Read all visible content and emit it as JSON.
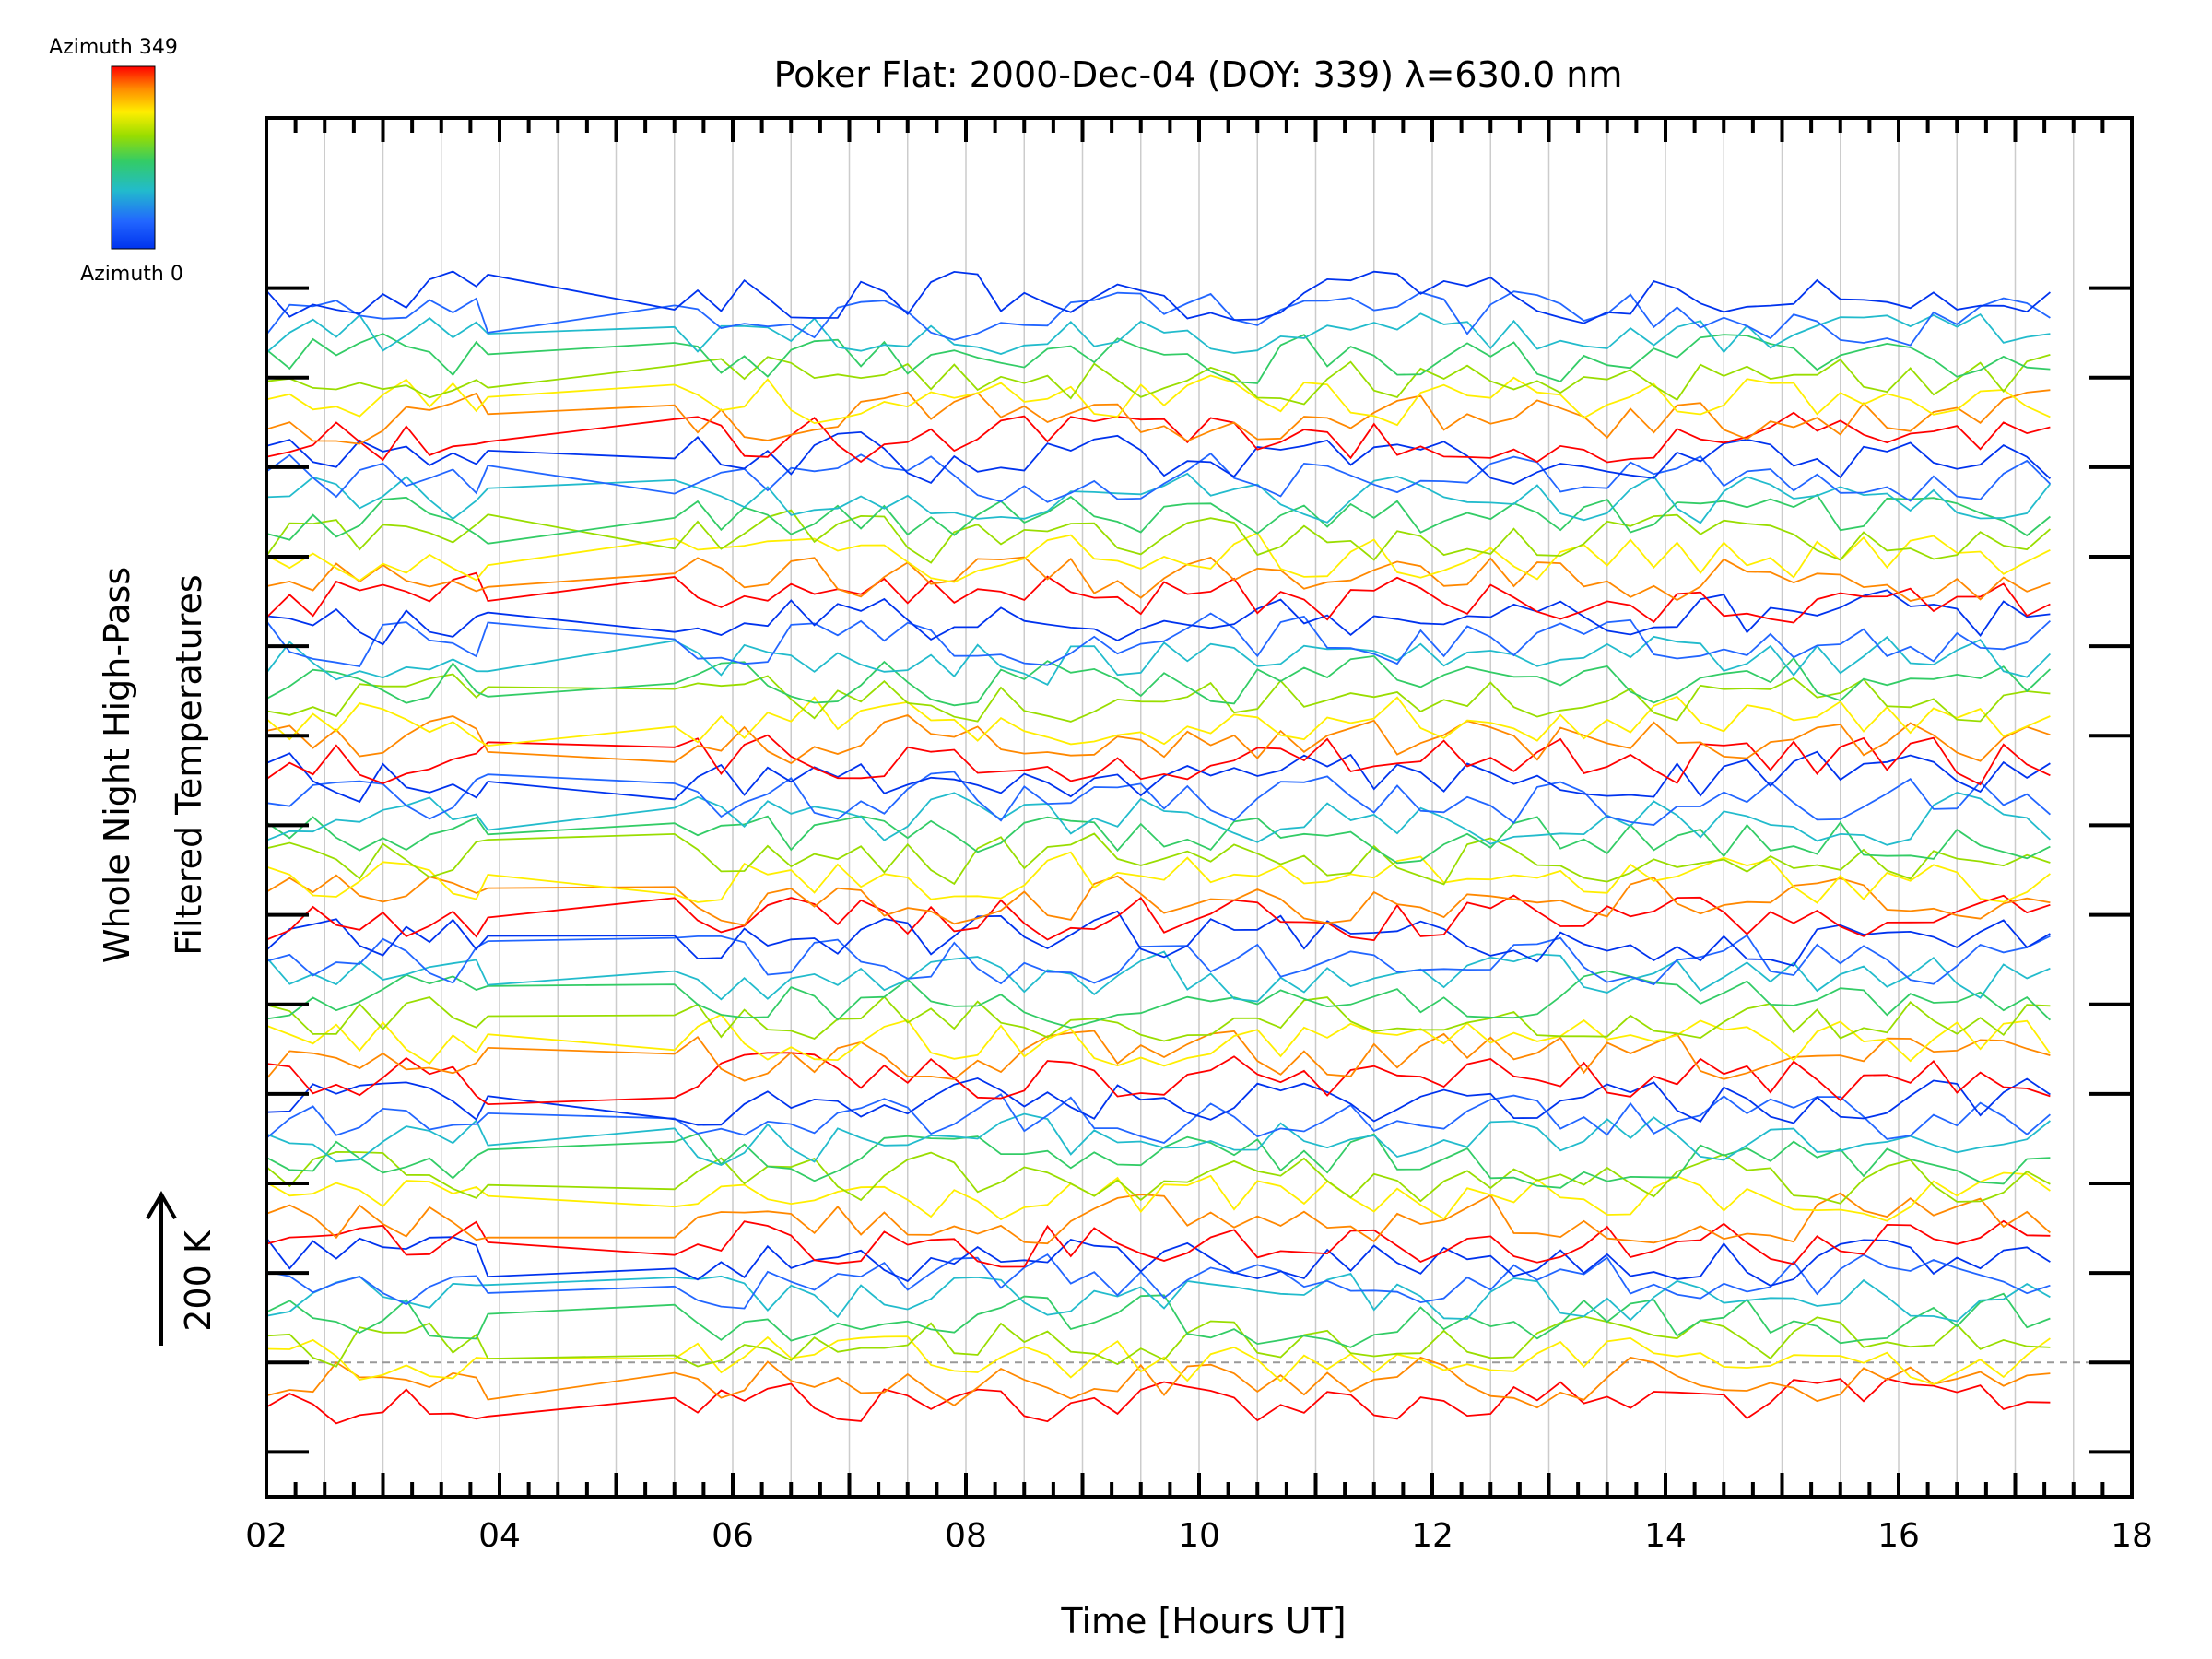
{
  "chart_data": {
    "type": "line",
    "title": "Poker Flat: 2000-Dec-04 (DOY: 339) λ=630.0 nm",
    "xlabel": "Time [Hours UT]",
    "ylabel_line1": "Whole Night High-Pass",
    "ylabel_line2": "Filtered Temperatures",
    "scale_label": "200 K",
    "xlim": [
      2,
      18
    ],
    "x_ticks": [
      "02",
      "04",
      "06",
      "08",
      "10",
      "12",
      "14",
      "16",
      "18"
    ],
    "y_ticks_major_count": 14,
    "grid": true,
    "baseline_dashed": true,
    "colorbar": {
      "top_label": "Azimuth 349",
      "bottom_label": "Azimuth 0",
      "colors": [
        "#ff0000",
        "#ff8800",
        "#ffee00",
        "#99dd00",
        "#33cc66",
        "#22bbcc",
        "#2266ff",
        "#0033ee"
      ]
    },
    "time_samples": [
      2.0,
      2.2,
      2.4,
      2.6,
      2.8,
      3.0,
      3.2,
      3.4,
      3.6,
      3.8,
      3.9,
      5.5,
      5.7,
      5.9,
      6.1,
      6.3,
      6.5,
      6.7,
      6.9,
      7.1,
      7.3,
      7.5,
      7.7,
      7.9,
      8.1,
      8.3,
      8.5,
      8.7,
      8.9,
      9.1,
      9.3,
      9.5,
      9.7,
      9.9,
      10.1,
      10.3,
      10.5,
      10.7,
      10.9,
      11.1,
      11.3,
      11.5,
      11.7,
      11.9,
      12.1,
      12.3,
      12.5,
      12.7,
      12.9,
      13.1,
      13.3,
      13.5,
      13.7,
      13.9,
      14.1,
      14.3,
      14.5,
      14.7,
      14.9,
      15.1,
      15.3,
      15.5,
      15.7,
      15.9,
      16.1,
      16.3,
      16.5,
      16.7,
      16.9,
      17.1,
      17.3
    ],
    "n_traces": 56,
    "offset_min_fraction": 0.07,
    "offset_max_fraction": 0.87
  }
}
